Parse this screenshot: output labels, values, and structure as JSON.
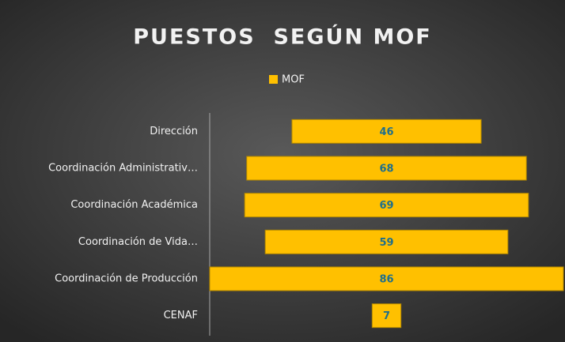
{
  "chart_data": {
    "type": "funnel",
    "title": "PUESTOS  SEGÚN MOF",
    "categories": [
      "Dirección",
      "Coordinación Administrativ…",
      "Coordinación Académica",
      "Coordinación de Vida…",
      "Coordinación de Producción",
      "CENAF"
    ],
    "series": [
      {
        "name": "MOF",
        "color": "#ffc000",
        "values": [
          46,
          68,
          69,
          59,
          86,
          7
        ]
      }
    ],
    "legend": "top"
  }
}
